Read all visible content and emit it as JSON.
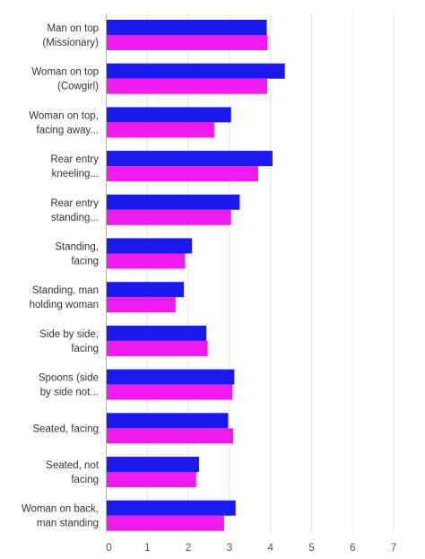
{
  "chart_data": {
    "type": "bar",
    "orientation": "horizontal",
    "categories": [
      [
        "Man on top",
        "(Missionary)"
      ],
      [
        "Woman on top",
        "(Cowgirl)"
      ],
      [
        "Woman on top,",
        "facing away..."
      ],
      [
        "Rear entry",
        "kneeling..."
      ],
      [
        "Rear entry",
        "standing..."
      ],
      [
        "Standing,",
        "facing"
      ],
      [
        "Standing, man",
        "holding woman"
      ],
      [
        "Side by side,",
        "facing"
      ],
      [
        "Spoons (side",
        "by side not..."
      ],
      [
        "Seated, facing"
      ],
      [
        "Seated, not",
        "facing"
      ],
      [
        "Woman on back,",
        "man standing"
      ]
    ],
    "series": [
      {
        "color": "#1a1aee",
        "values": [
          3.92,
          4.36,
          3.05,
          4.06,
          3.26,
          2.1,
          1.9,
          2.45,
          3.13,
          2.98,
          2.27,
          3.16
        ]
      },
      {
        "color": "#ee1aee",
        "values": [
          3.94,
          3.93,
          2.64,
          3.71,
          3.05,
          1.93,
          1.7,
          2.48,
          3.08,
          3.1,
          2.2,
          2.88
        ]
      }
    ],
    "xlim": [
      0,
      7
    ],
    "xticks": [
      "0",
      "1",
      "2",
      "3",
      "4",
      "5",
      "6",
      "7"
    ],
    "grid": true,
    "title": "",
    "xlabel": "",
    "ylabel": ""
  }
}
